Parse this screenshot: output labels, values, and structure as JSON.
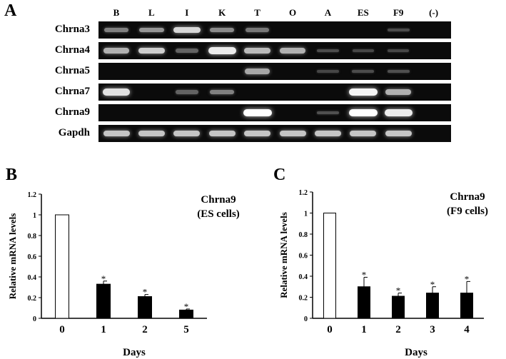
{
  "panels": {
    "a": "A",
    "b": "B",
    "c": "C"
  },
  "gel": {
    "lanes": [
      "B",
      "L",
      "I",
      "K",
      "T",
      "O",
      "A",
      "ES",
      "F9",
      "(-)"
    ],
    "genes": [
      "Chrna3",
      "Chrna4",
      "Chrna5",
      "Chrna7",
      "Chrna9",
      "Gapdh"
    ],
    "band_intensity": [
      [
        0.35,
        0.45,
        0.8,
        0.4,
        0.3,
        0.0,
        0.0,
        0.0,
        0.08,
        0.0
      ],
      [
        0.6,
        0.75,
        0.2,
        0.9,
        0.65,
        0.6,
        0.08,
        0.05,
        0.05,
        0.0
      ],
      [
        0.0,
        0.0,
        0.0,
        0.0,
        0.55,
        0.0,
        0.05,
        0.08,
        0.1,
        0.0
      ],
      [
        0.85,
        0.0,
        0.2,
        0.35,
        0.0,
        0.0,
        0.0,
        0.95,
        0.6,
        0.0
      ],
      [
        0.0,
        0.0,
        0.0,
        0.0,
        1.0,
        0.0,
        0.1,
        1.0,
        0.9,
        0.0
      ],
      [
        0.7,
        0.7,
        0.7,
        0.7,
        0.7,
        0.7,
        0.7,
        0.7,
        0.7,
        0.0
      ]
    ]
  },
  "chart_data": [
    {
      "type": "bar",
      "title": "Chrna9",
      "subtitle": "(ES cells)",
      "xlabel": "Days",
      "ylabel": "Relative mRNA levels",
      "categories": [
        "0",
        "1",
        "2",
        "5"
      ],
      "values": [
        1.0,
        0.33,
        0.21,
        0.08
      ],
      "errors": [
        0,
        0.03,
        0.02,
        0.01
      ],
      "significant": [
        false,
        true,
        true,
        true
      ],
      "marker": "*",
      "ylim": [
        0,
        1.2
      ],
      "yticks": [
        "0",
        "0.2",
        "0.4",
        "0.6",
        "0.8",
        "1",
        "1.2"
      ],
      "fill": [
        "#ffffff",
        "#000000",
        "#000000",
        "#000000"
      ]
    },
    {
      "type": "bar",
      "title": "Chrna9",
      "subtitle": "(F9 cells)",
      "xlabel": "Days",
      "ylabel": "Relative mRNA levels",
      "categories": [
        "0",
        "1",
        "2",
        "3",
        "4"
      ],
      "values": [
        1.0,
        0.3,
        0.21,
        0.24,
        0.24
      ],
      "errors": [
        0,
        0.09,
        0.03,
        0.06,
        0.11
      ],
      "significant": [
        false,
        true,
        true,
        true,
        true
      ],
      "marker": "*",
      "ylim": [
        0,
        1.2
      ],
      "yticks": [
        "0",
        "0.2",
        "0.4",
        "0.6",
        "0.8",
        "1",
        "1.2"
      ],
      "fill": [
        "#ffffff",
        "#000000",
        "#000000",
        "#000000",
        "#000000"
      ]
    }
  ]
}
